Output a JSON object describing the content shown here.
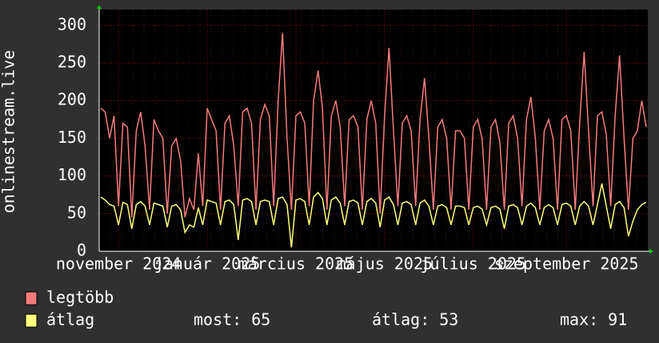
{
  "chart_data": {
    "type": "line",
    "y_label": "onlinestream.live",
    "ylim": [
      0,
      321
    ],
    "yticks": [
      0,
      50,
      100,
      150,
      200,
      250,
      300
    ],
    "grid": true,
    "xticks": [
      {
        "value": 4,
        "label": "november 2024"
      },
      {
        "value": 24,
        "label": "január 2025"
      },
      {
        "value": 44,
        "label": "március 2025"
      },
      {
        "value": 64,
        "label": "május 2025"
      },
      {
        "value": 84,
        "label": "július 2025"
      },
      {
        "value": 105,
        "label": "szeptember 2025"
      }
    ],
    "series": [
      {
        "name": "legtöbb",
        "color": "#f47c7c",
        "values": [
          190,
          185,
          150,
          180,
          60,
          170,
          165,
          45,
          160,
          185,
          140,
          55,
          175,
          160,
          150,
          50,
          140,
          150,
          120,
          45,
          70,
          55,
          130,
          60,
          190,
          175,
          160,
          55,
          170,
          180,
          140,
          60,
          185,
          190,
          170,
          55,
          175,
          195,
          180,
          60,
          200,
          290,
          150,
          55,
          180,
          185,
          170,
          60,
          200,
          240,
          190,
          55,
          180,
          200,
          165,
          60,
          175,
          180,
          165,
          55,
          175,
          200,
          170,
          50,
          180,
          270,
          160,
          60,
          170,
          180,
          160,
          60,
          175,
          230,
          150,
          55,
          165,
          175,
          150,
          55,
          160,
          160,
          150,
          55,
          165,
          175,
          150,
          55,
          165,
          175,
          145,
          55,
          170,
          180,
          150,
          60,
          175,
          205,
          150,
          55,
          160,
          175,
          150,
          55,
          175,
          180,
          160,
          55,
          170,
          265,
          160,
          60,
          180,
          185,
          155,
          60,
          180,
          260,
          150,
          55,
          150,
          160,
          200,
          165
        ]
      },
      {
        "name": "átlag",
        "color": "#ffff7c",
        "values": [
          72,
          68,
          62,
          60,
          35,
          65,
          62,
          30,
          62,
          66,
          60,
          35,
          64,
          62,
          60,
          32,
          60,
          62,
          55,
          25,
          35,
          32,
          58,
          35,
          68,
          66,
          64,
          35,
          66,
          68,
          62,
          15,
          68,
          70,
          66,
          35,
          66,
          68,
          66,
          35,
          70,
          72,
          62,
          5,
          68,
          70,
          66,
          35,
          72,
          78,
          70,
          35,
          68,
          72,
          64,
          35,
          66,
          68,
          64,
          35,
          66,
          70,
          64,
          32,
          68,
          72,
          62,
          35,
          64,
          66,
          62,
          35,
          64,
          68,
          60,
          35,
          60,
          62,
          58,
          35,
          60,
          60,
          58,
          35,
          58,
          60,
          56,
          35,
          58,
          60,
          56,
          30,
          60,
          62,
          58,
          35,
          60,
          64,
          58,
          35,
          58,
          62,
          58,
          35,
          62,
          64,
          60,
          35,
          60,
          66,
          60,
          35,
          62,
          90,
          60,
          30,
          62,
          66,
          58,
          20,
          40,
          55,
          62,
          65
        ]
      }
    ],
    "stats": [
      {
        "label": "most:",
        "value": 65
      },
      {
        "label": "átlag:",
        "value": 53
      },
      {
        "label": "max:",
        "value": 91
      }
    ]
  }
}
